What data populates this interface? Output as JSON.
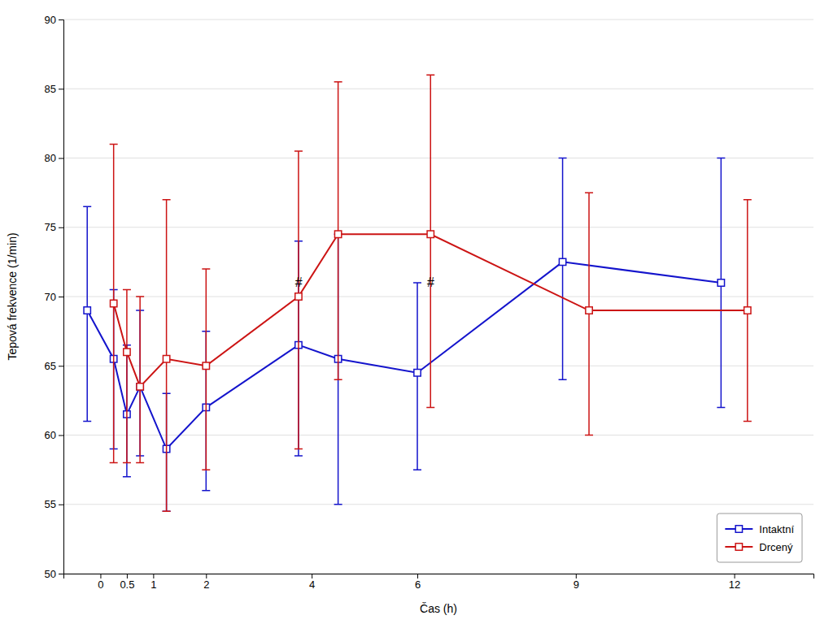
{
  "chart_data": {
    "type": "line",
    "xlabel": "Čas (h)",
    "ylabel": "Tepová frekvence (1/min)",
    "xlim": [
      -0.7,
      13.5
    ],
    "ylim": [
      50,
      90
    ],
    "xticks": [
      0,
      0.5,
      1,
      2,
      4,
      6,
      9,
      12
    ],
    "yticks": [
      50,
      55,
      60,
      65,
      70,
      75,
      80,
      85,
      90
    ],
    "grid": "y",
    "legend": "lower right",
    "series": [
      {
        "name": "Intaktní",
        "color": "#1414cc",
        "marker": "square",
        "line_style": "solid",
        "x": [
          -0.25,
          0.25,
          0.5,
          0.75,
          1.25,
          2.0,
          3.75,
          4.5,
          6.0,
          8.75,
          11.75
        ],
        "values": [
          69.0,
          65.5,
          61.5,
          63.5,
          59.0,
          62.0,
          66.5,
          65.5,
          64.5,
          72.5,
          71.0
        ],
        "error_lo": [
          8.0,
          6.5,
          4.5,
          5.0,
          4.5,
          6.0,
          8.0,
          10.5,
          7.0,
          8.5,
          9.0
        ],
        "error_hi": [
          7.5,
          5.0,
          5.0,
          5.5,
          4.0,
          5.5,
          7.5,
          9.0,
          6.5,
          7.5,
          9.0
        ]
      },
      {
        "name": "Drcený",
        "color": "#cc1414",
        "marker": "square",
        "line_style": "solid",
        "x": [
          0.25,
          0.5,
          0.75,
          1.25,
          2.0,
          3.75,
          4.5,
          6.25,
          9.25,
          12.25
        ],
        "values": [
          69.5,
          66.0,
          63.5,
          65.5,
          65.0,
          70.0,
          74.5,
          74.5,
          69.0,
          69.0
        ],
        "error_lo": [
          11.5,
          8.0,
          5.5,
          11.0,
          7.5,
          11.0,
          10.5,
          12.5,
          9.0,
          8.0
        ],
        "error_hi": [
          11.5,
          4.5,
          6.5,
          11.5,
          7.0,
          10.5,
          11.0,
          11.5,
          8.5,
          8.0
        ]
      }
    ],
    "annotations": [
      {
        "x": 3.75,
        "y": 70.5,
        "text": "#"
      },
      {
        "x": 6.25,
        "y": 70.5,
        "text": "#"
      }
    ]
  }
}
